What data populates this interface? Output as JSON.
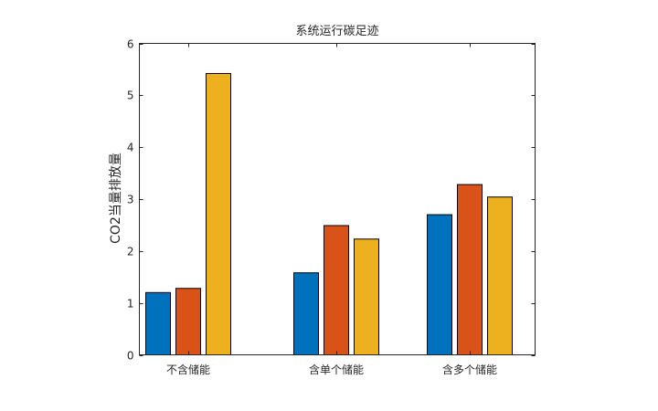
{
  "chart_data": {
    "type": "bar",
    "title": "系统运行碳足迹",
    "xlabel": "",
    "ylabel": "CO2当量排放量",
    "categories": [
      "不含储能",
      "含单个储能",
      "含多个储能"
    ],
    "series": [
      {
        "values": [
          1.2,
          1.58,
          2.7
        ],
        "color": "#0072BD"
      },
      {
        "values": [
          1.28,
          2.49,
          3.28
        ],
        "color": "#D95319"
      },
      {
        "values": [
          5.42,
          2.23,
          3.04
        ],
        "color": "#EDB120"
      }
    ],
    "ylim": [
      0,
      6
    ],
    "yticks": [
      "0",
      "1",
      "2",
      "3",
      "4",
      "5",
      "6"
    ],
    "grid": false,
    "legend": "none"
  }
}
